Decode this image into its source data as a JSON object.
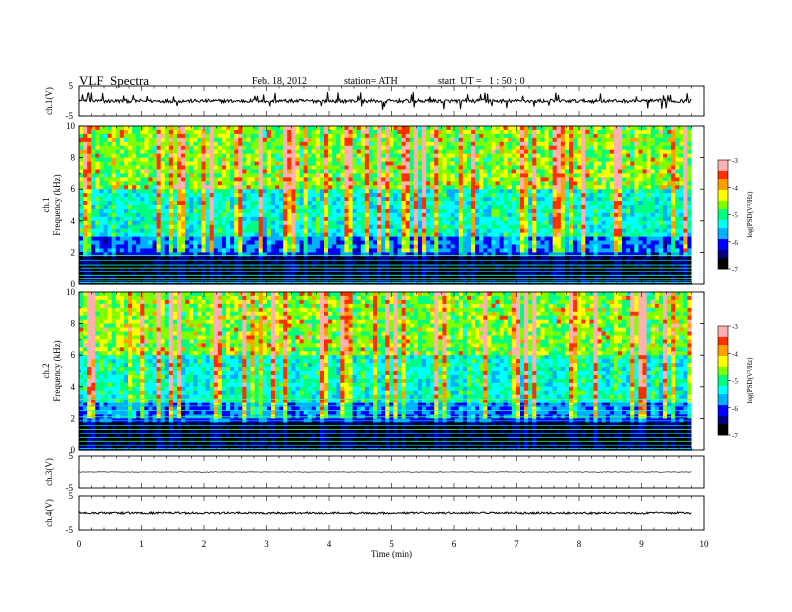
{
  "header": {
    "title": "VLF  Spectra",
    "date": "Feb. 18, 2012",
    "station": "station= ATH",
    "start": "start  UT =   1 : 50 : 0"
  },
  "colormap": [
    "#000000",
    "#000080",
    "#0000ff",
    "#00b0ff",
    "#00ffff",
    "#00ff80",
    "#80ff00",
    "#ffff00",
    "#ffa000",
    "#ff3000",
    "#ffb0b0"
  ],
  "chart_data": [
    {
      "type": "line",
      "panel": "ch1-waveform",
      "ylabel": "ch.1(V)",
      "ylim": [
        -5,
        5
      ],
      "yticks": [
        "5",
        "-5"
      ],
      "baseline": 0,
      "noise_amplitude": 0.6,
      "spike_count": 50
    },
    {
      "type": "heatmap",
      "panel": "ch1-spectrogram",
      "ylabel_channel": "ch.1",
      "ylabel": "Frequency  (kHz)",
      "ylim": [
        0,
        10
      ],
      "yticks": [
        "0",
        "2",
        "4",
        "6",
        "8",
        "10"
      ],
      "xlim": [
        0,
        9.8
      ],
      "colorbar": {
        "label": "log(PSD(V²/Hz)",
        "range": [
          -7,
          -3
        ],
        "ticks": [
          "-3",
          "-4",
          "-5",
          "-6",
          "-7"
        ]
      },
      "lines_khz": [
        0.1,
        0.2,
        0.35,
        0.55,
        0.8,
        1.0,
        1.2,
        1.5,
        1.8
      ]
    },
    {
      "type": "heatmap",
      "panel": "ch2-spectrogram",
      "ylabel_channel": "ch.2",
      "ylabel": "Frequency  (kHz)",
      "ylim": [
        0,
        10
      ],
      "yticks": [
        "0",
        "2",
        "4",
        "6",
        "8",
        "10"
      ],
      "xlim": [
        0,
        9.8
      ],
      "colorbar": {
        "label": "log(PSD(V²/Hz)",
        "range": [
          -7,
          -3
        ],
        "ticks": [
          "-3",
          "-4",
          "-5",
          "-6",
          "-7"
        ]
      },
      "lines_khz": [
        0.1,
        0.3,
        0.55,
        0.8,
        1.05,
        1.3,
        1.55,
        1.85,
        2.1,
        2.5,
        2.8,
        3.2
      ]
    },
    {
      "type": "line",
      "panel": "ch3-waveform",
      "ylabel": "ch.3(V)",
      "ylim": [
        -5,
        5
      ],
      "yticks": [
        "5",
        "-5"
      ],
      "baseline": 0,
      "noise_amplitude": 0.1,
      "spike_count": 0
    },
    {
      "type": "line",
      "panel": "ch4-waveform",
      "ylabel": "ch.4(V)",
      "ylim": [
        -5,
        5
      ],
      "yticks": [
        "5",
        "-5"
      ],
      "baseline": 0,
      "noise_amplitude": 0.3,
      "spike_count": 0
    }
  ],
  "xaxis": {
    "label": "Time  (min)",
    "xlim": [
      0,
      10
    ],
    "data_end": 9.8,
    "ticks": [
      "0",
      "1",
      "2",
      "3",
      "4",
      "5",
      "6",
      "7",
      "8",
      "9",
      "10"
    ]
  }
}
